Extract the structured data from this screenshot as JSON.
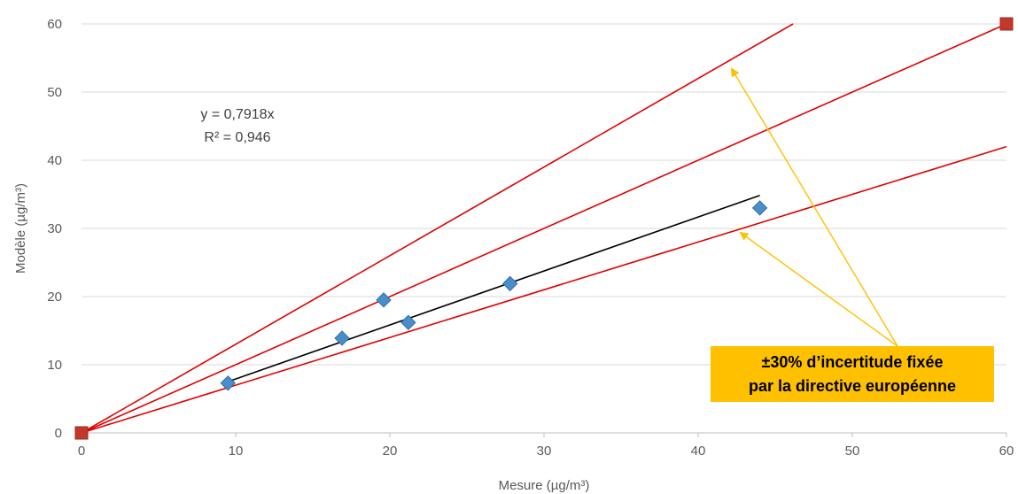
{
  "chart_data": {
    "type": "scatter",
    "xlabel": "Mesure (µg/m³)",
    "ylabel": "Modèle (µg/m³)",
    "xlim": [
      0,
      60
    ],
    "ylim": [
      0,
      60
    ],
    "x_ticks": [
      "0",
      "10",
      "20",
      "30",
      "40",
      "50",
      "60"
    ],
    "y_ticks": [
      "0",
      "10",
      "20",
      "30",
      "40",
      "50",
      "60"
    ],
    "grid": "horizontal",
    "series": [
      {
        "marker": "diamond",
        "color": "#4a8ec9",
        "points": [
          {
            "x": 9.5,
            "y": 7.3
          },
          {
            "x": 16.9,
            "y": 13.9
          },
          {
            "x": 19.6,
            "y": 19.5
          },
          {
            "x": 21.2,
            "y": 16.2
          },
          {
            "x": 27.8,
            "y": 21.9
          },
          {
            "x": 44.0,
            "y": 33.0
          }
        ]
      },
      {
        "marker": "square",
        "color": "#c0392b",
        "points": [
          {
            "x": 0,
            "y": 0
          },
          {
            "x": 60,
            "y": 60
          }
        ]
      }
    ],
    "trendline": {
      "slope": 0.7918,
      "x_range": [
        9.5,
        44.0
      ],
      "color": "#000000"
    },
    "reference_lines": [
      {
        "slope": 1.3,
        "color": "#e00000"
      },
      {
        "slope": 1.0,
        "color": "#e00000"
      },
      {
        "slope": 0.7,
        "color": "#e00000"
      }
    ],
    "annotations": {
      "equation_line1": "y = 0,7918x",
      "equation_line2": "R² = 0,946",
      "callout_line1": "±30% d’incertitude fixée",
      "callout_line2": "par la directive européenne",
      "callout_color": "#ffc000",
      "arrow_color": "#ffc000"
    }
  }
}
